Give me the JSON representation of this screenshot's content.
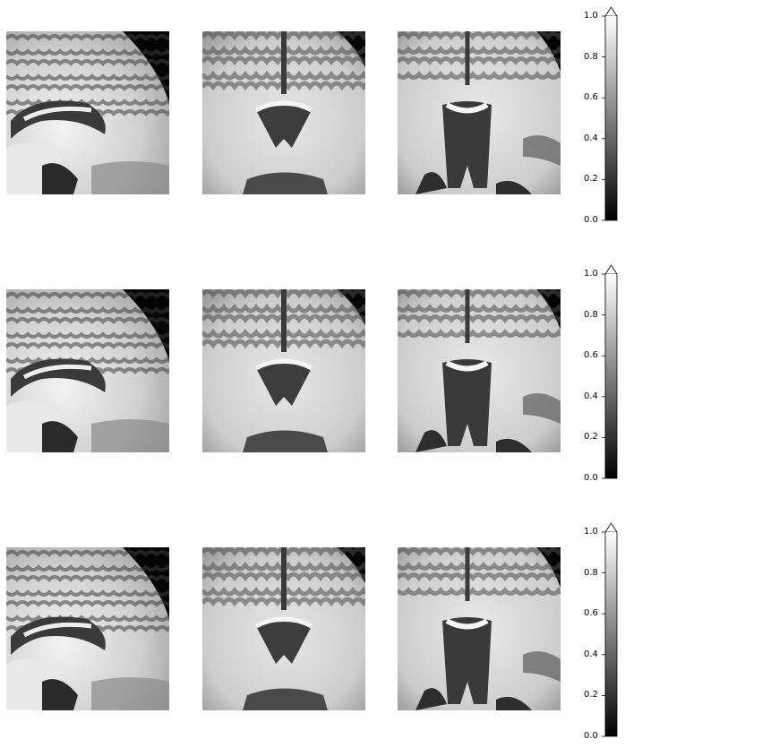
{
  "figure": {
    "rows": [
      {
        "row": 1,
        "panels": [
          {
            "view": "sagittal",
            "image": "brain-mri-sagittal-slice"
          },
          {
            "view": "coronal",
            "image": "brain-mri-coronal-slice"
          },
          {
            "view": "axial",
            "image": "brain-mri-axial-slice"
          }
        ],
        "colorbar": {
          "colormap": "gray",
          "extend": "max",
          "ticks": [
            "0.0",
            "0.2",
            "0.4",
            "0.6",
            "0.8",
            "1.0"
          ]
        }
      },
      {
        "row": 2,
        "panels": [
          {
            "view": "sagittal",
            "image": "brain-mri-sagittal-slice"
          },
          {
            "view": "coronal",
            "image": "brain-mri-coronal-slice"
          },
          {
            "view": "axial",
            "image": "brain-mri-axial-slice"
          }
        ],
        "colorbar": {
          "colormap": "gray",
          "extend": "max",
          "ticks": [
            "0.0",
            "0.2",
            "0.4",
            "0.6",
            "0.8",
            "1.0"
          ]
        }
      },
      {
        "row": 3,
        "panels": [
          {
            "view": "sagittal",
            "image": "brain-mri-sagittal-slice"
          },
          {
            "view": "coronal",
            "image": "brain-mri-coronal-slice"
          },
          {
            "view": "axial",
            "image": "brain-mri-axial-slice"
          }
        ],
        "colorbar": {
          "colormap": "gray",
          "extend": "max",
          "ticks": [
            "0.0",
            "0.2",
            "0.4",
            "0.6",
            "0.8",
            "1.0"
          ]
        }
      }
    ]
  }
}
